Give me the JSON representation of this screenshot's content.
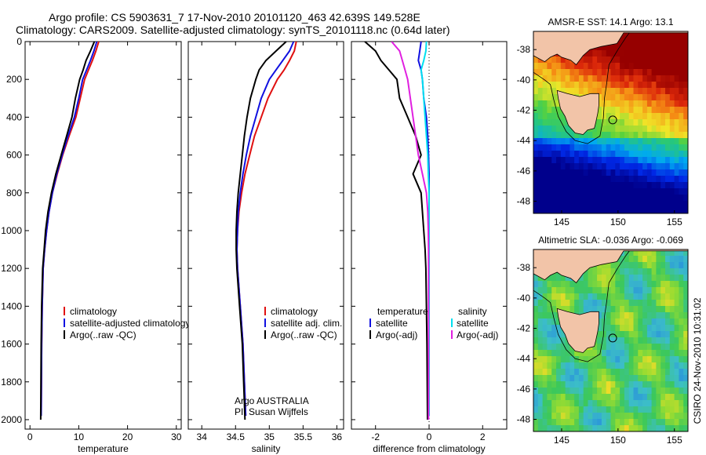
{
  "header": {
    "line1": "Argo profile: CS 5903631_7 17-Nov-2010 20101120_463 42.639S 149.528E",
    "line2": "Climatology: CARS2009. Satellite-adjusted climatology: synTS_20101118.nc (0.64d later)"
  },
  "colors": {
    "climatology": "#e01010",
    "satellite": "#1010e0",
    "argo": "#000000",
    "satellite_salinity": "#00e0f0",
    "argo_adj_salinity": "#e020e0"
  },
  "chart_data": [
    {
      "type": "line",
      "id": "temperature",
      "xlabel": "temperature",
      "xlim": [
        -1,
        31
      ],
      "ylim": [
        2050,
        0
      ],
      "xticks": [
        0,
        10,
        20,
        30
      ],
      "yticks": [
        0,
        200,
        400,
        600,
        800,
        1000,
        1200,
        1400,
        1600,
        1800,
        2000
      ],
      "legend": [
        "climatology",
        "satellite-adjusted climatology",
        "Argo(..raw -QC)"
      ],
      "series": [
        {
          "name": "climatology",
          "color": "#e01010",
          "x": [
            14.1,
            13.5,
            12.8,
            12.0,
            11.2,
            10.3,
            9.4,
            8.0,
            6.7,
            5.6,
            4.6,
            3.9,
            3.4,
            3.0,
            2.7,
            2.5,
            2.4,
            2.3
          ],
          "y": [
            0,
            50,
            100,
            150,
            200,
            300,
            400,
            500,
            600,
            700,
            800,
            900,
            1000,
            1100,
            1200,
            1400,
            1600,
            1980
          ]
        },
        {
          "name": "satellite-adjusted climatology",
          "color": "#1010e0",
          "x": [
            13.7,
            13.1,
            12.4,
            11.6,
            10.8,
            10.0,
            9.1,
            7.8,
            6.6,
            5.5,
            4.6,
            3.9,
            3.4,
            3.0,
            2.7,
            2.5,
            2.4,
            2.3
          ],
          "y": [
            0,
            50,
            100,
            150,
            200,
            300,
            400,
            500,
            600,
            700,
            800,
            900,
            1000,
            1100,
            1200,
            1400,
            1600,
            1980
          ]
        },
        {
          "name": "Argo(..raw -QC)",
          "color": "#000000",
          "x": [
            13.2,
            12.4,
            11.5,
            10.9,
            10.2,
            9.3,
            8.6,
            7.5,
            6.4,
            5.3,
            4.4,
            3.7,
            3.2,
            2.9,
            2.6,
            2.4,
            2.3,
            2.2
          ],
          "y": [
            0,
            50,
            100,
            150,
            200,
            300,
            400,
            500,
            600,
            700,
            800,
            900,
            1000,
            1100,
            1200,
            1400,
            1600,
            2000
          ]
        }
      ]
    },
    {
      "type": "line",
      "id": "salinity",
      "xlabel": "salinity",
      "xlim": [
        33.8,
        36.1
      ],
      "ylim": [
        2050,
        0
      ],
      "xticks": [
        34,
        34.5,
        35,
        35.5,
        36
      ],
      "xtick_labels": [
        "34",
        "34.5",
        "35",
        "35.5",
        "36"
      ],
      "legend": [
        "climatology",
        "satellite adj. clim.",
        "Argo(..raw -QC)"
      ],
      "annotations": [
        "Argo AUSTRALIA",
        "PI: Susan Wijffels"
      ],
      "series": [
        {
          "name": "climatology",
          "color": "#e01010",
          "x": [
            35.4,
            35.37,
            35.3,
            35.22,
            35.12,
            34.98,
            34.88,
            34.78,
            34.71,
            34.64,
            34.59,
            34.55,
            34.53,
            34.52,
            34.53,
            34.57,
            34.61,
            34.65
          ],
          "y": [
            0,
            50,
            100,
            150,
            200,
            300,
            400,
            500,
            600,
            700,
            800,
            900,
            1000,
            1100,
            1200,
            1400,
            1600,
            1980
          ]
        },
        {
          "name": "satellite adj. clim.",
          "color": "#1010e0",
          "x": [
            35.36,
            35.3,
            35.2,
            35.1,
            35.0,
            34.88,
            34.8,
            34.72,
            34.66,
            34.61,
            34.57,
            34.54,
            34.53,
            34.52,
            34.53,
            34.57,
            34.61,
            34.65
          ],
          "y": [
            0,
            50,
            100,
            150,
            200,
            300,
            400,
            500,
            600,
            700,
            800,
            900,
            1000,
            1100,
            1200,
            1400,
            1600,
            1980
          ]
        },
        {
          "name": "Argo(..raw -QC)",
          "color": "#000000",
          "x": [
            35.25,
            35.1,
            34.95,
            34.85,
            34.8,
            34.72,
            34.67,
            34.63,
            34.6,
            34.57,
            34.54,
            34.52,
            34.51,
            34.51,
            34.52,
            34.56,
            34.6,
            34.64
          ],
          "y": [
            0,
            50,
            100,
            150,
            200,
            300,
            400,
            500,
            600,
            700,
            800,
            900,
            1000,
            1100,
            1200,
            1400,
            1600,
            2000
          ]
        }
      ]
    },
    {
      "type": "line",
      "id": "difference",
      "xlabel": "difference from climatology",
      "xlim": [
        -2.9,
        2.9
      ],
      "ylim": [
        2050,
        0
      ],
      "xticks": [
        -2,
        0,
        2
      ],
      "legend_left": [
        "temperature",
        "satellite",
        "Argo(-adj)"
      ],
      "legend_right": [
        "salinity",
        "satellite",
        "Argo(-adj)"
      ],
      "series": [
        {
          "name": "temperature satellite",
          "color": "#1010e0",
          "x": [
            -0.3,
            -0.35,
            -0.4,
            -0.3,
            -0.25,
            -0.2,
            -0.1,
            -0.05,
            -0.02,
            0,
            0,
            0,
            0,
            0,
            0,
            0,
            0,
            0
          ],
          "y": [
            0,
            50,
            100,
            150,
            200,
            300,
            400,
            500,
            600,
            700,
            800,
            900,
            1000,
            1100,
            1200,
            1400,
            1600,
            1980
          ]
        },
        {
          "name": "temperature Argo(-adj)",
          "color": "#000000",
          "x": [
            -2.4,
            -2.0,
            -1.8,
            -1.5,
            -1.2,
            -1.1,
            -0.8,
            -0.5,
            -0.3,
            -0.6,
            -0.3,
            -0.25,
            -0.2,
            -0.15,
            -0.12,
            -0.1,
            -0.08,
            -0.06
          ],
          "y": [
            0,
            50,
            100,
            150,
            200,
            300,
            400,
            500,
            600,
            700,
            800,
            900,
            1000,
            1100,
            1200,
            1400,
            1600,
            2000
          ]
        },
        {
          "name": "salinity satellite",
          "color": "#00e0f0",
          "x": [
            -0.1,
            -0.12,
            -0.2,
            -0.3,
            -0.25,
            -0.2,
            -0.15,
            -0.1,
            -0.05,
            -0.03,
            0,
            0,
            0,
            0,
            0,
            0,
            0,
            0
          ],
          "y": [
            0,
            50,
            100,
            150,
            200,
            300,
            400,
            500,
            600,
            700,
            800,
            900,
            1000,
            1100,
            1200,
            1400,
            1600,
            1980
          ]
        },
        {
          "name": "salinity Argo(-adj)",
          "color": "#e020e0",
          "x": [
            -1.4,
            -1.1,
            -1.0,
            -0.9,
            -0.8,
            -0.7,
            -0.6,
            -0.5,
            -0.4,
            -0.25,
            -0.1,
            -0.05,
            -0.03,
            -0.02,
            -0.02,
            -0.02,
            -0.02,
            -0.02
          ],
          "y": [
            0,
            50,
            100,
            150,
            200,
            300,
            400,
            500,
            600,
            700,
            800,
            900,
            1000,
            1100,
            1200,
            1400,
            1600,
            2000
          ]
        }
      ]
    },
    {
      "type": "heatmap",
      "id": "sst_map",
      "title": "AMSR-E SST: 14.1  Argo: 13.1",
      "xlim": [
        142.5,
        156.2
      ],
      "ylim": [
        -48.8,
        -36.8
      ],
      "xticks": [
        145,
        150,
        155
      ],
      "yticks": [
        -38,
        -40,
        -42,
        -44,
        -46,
        -48
      ],
      "marker": {
        "lon": 149.528,
        "lat": -42.639
      }
    },
    {
      "type": "heatmap",
      "id": "sla_map",
      "title": "Altimetric SLA: -0.036  Argo: -0.069",
      "xlim": [
        142.5,
        156.2
      ],
      "ylim": [
        -48.8,
        -36.8
      ],
      "xticks": [
        145,
        150,
        155
      ],
      "yticks": [
        -38,
        -40,
        -42,
        -44,
        -46,
        -48
      ],
      "marker": {
        "lon": 149.528,
        "lat": -42.639
      }
    }
  ],
  "footer": {
    "credit": "CSIRO 24-Nov-2010 10:31:02"
  }
}
